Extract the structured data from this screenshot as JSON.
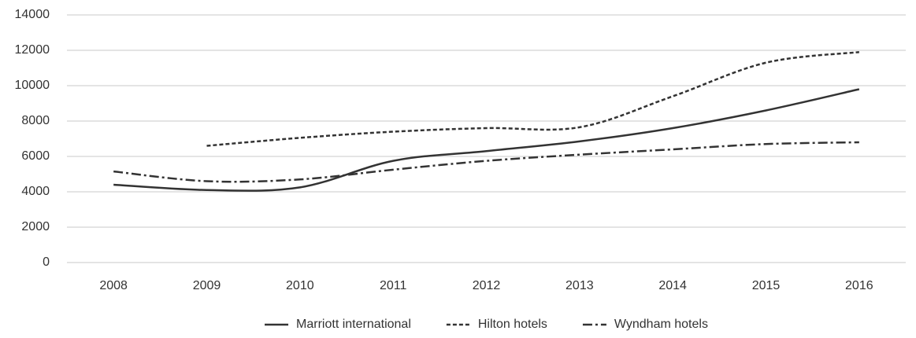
{
  "chart_data": {
    "type": "line",
    "categories": [
      "2008",
      "2009",
      "2010",
      "2011",
      "2012",
      "2013",
      "2014",
      "2015",
      "2016"
    ],
    "series": [
      {
        "name": "Marriott international",
        "color": "#333333",
        "dash": "solid",
        "values": [
          4400,
          4100,
          4250,
          5750,
          6300,
          6850,
          7600,
          8600,
          9800
        ]
      },
      {
        "name": "Hilton hotels",
        "color": "#333333",
        "dash": "dashed",
        "values": [
          null,
          6600,
          7050,
          7400,
          7600,
          7650,
          9400,
          11300,
          11900
        ]
      },
      {
        "name": "Wyndham hotels",
        "color": "#333333",
        "dash": "dashdot",
        "values": [
          5150,
          4600,
          4700,
          5250,
          5750,
          6100,
          6400,
          6700,
          6800
        ]
      }
    ],
    "ylim": [
      0,
      14000
    ],
    "yticks": [
      0,
      2000,
      4000,
      6000,
      8000,
      10000,
      12000,
      14000
    ],
    "grid": true,
    "legend": "bottom"
  }
}
